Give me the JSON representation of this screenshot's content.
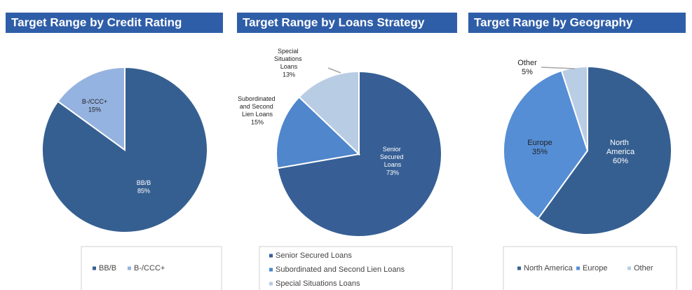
{
  "chart_data": [
    {
      "type": "pie",
      "title": "Target Range by Credit Rating",
      "categories": [
        "BB/B",
        "B-/CCC+"
      ],
      "values": [
        85,
        15
      ],
      "value_labels": [
        "85%",
        "15%"
      ],
      "colors": [
        "#365f91",
        "#95b3e0"
      ]
    },
    {
      "type": "pie",
      "title": "Target Range by Loans Strategy",
      "categories": [
        "Senior Secured Loans",
        "Subordinated and Second Lien Loans",
        "Special Situations Loans"
      ],
      "values": [
        73,
        15,
        13
      ],
      "value_labels": [
        "73%",
        "15%",
        "13%"
      ],
      "colors": [
        "#375f95",
        "#4f86cc",
        "#b8cce4"
      ]
    },
    {
      "type": "pie",
      "title": "Target Range by Geography",
      "categories": [
        "North America",
        "Europe",
        "Other"
      ],
      "values": [
        60,
        35,
        5
      ],
      "value_labels": [
        "60%",
        "35%",
        "5%"
      ],
      "colors": [
        "#365f91",
        "#558ed5",
        "#b9cde5"
      ]
    }
  ]
}
